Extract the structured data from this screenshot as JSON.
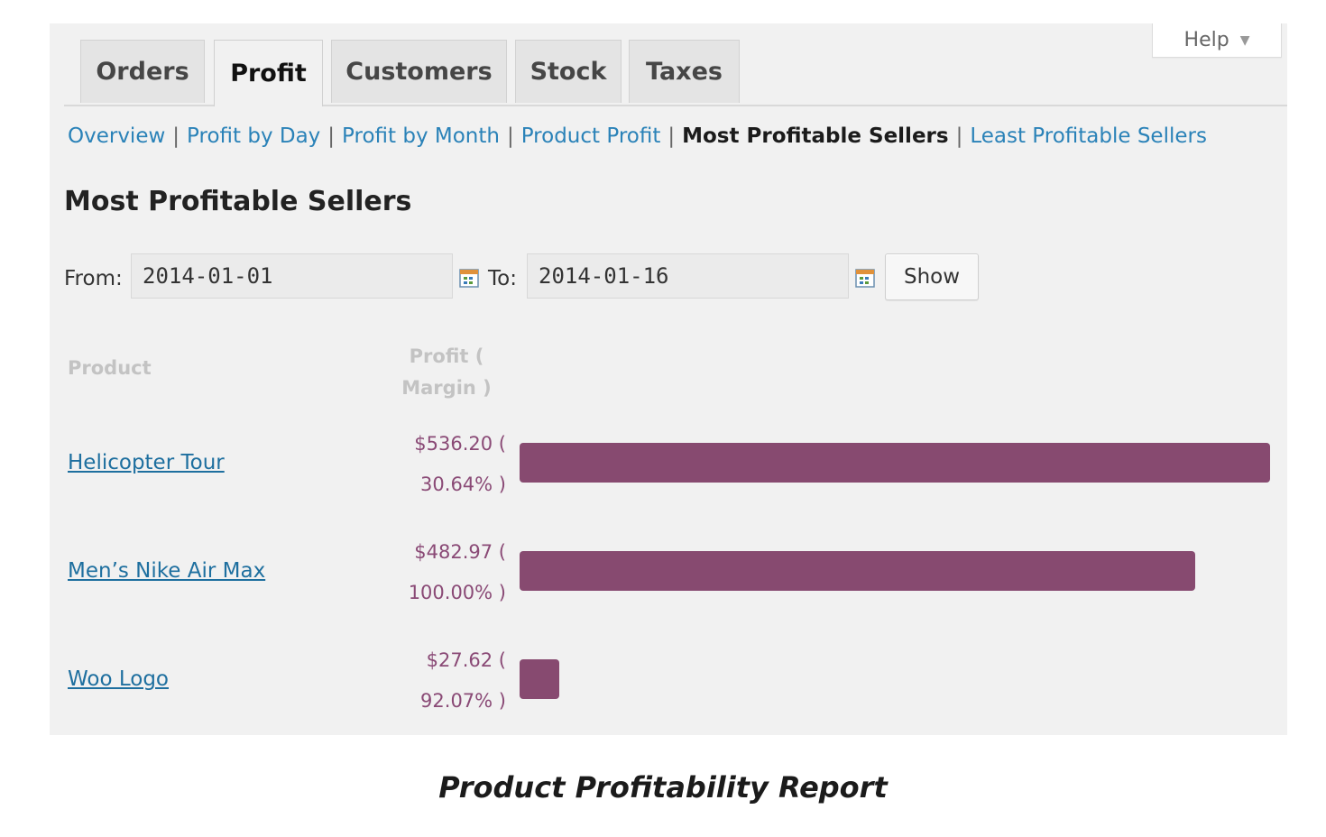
{
  "help": {
    "label": "Help"
  },
  "tabs": [
    {
      "label": "Orders"
    },
    {
      "label": "Profit"
    },
    {
      "label": "Customers"
    },
    {
      "label": "Stock"
    },
    {
      "label": "Taxes"
    }
  ],
  "subnav": {
    "overview": "Overview",
    "profit_by_day": "Profit by Day",
    "profit_by_month": "Profit by Month",
    "product_profit": "Product Profit",
    "most_profitable": "Most Profitable Sellers",
    "least_profitable": "Least Profitable Sellers",
    "separator": "|"
  },
  "page_title": "Most Profitable Sellers",
  "filter": {
    "from_label": "From:",
    "from_value": "2014-01-01",
    "to_label": "To:",
    "to_value": "2014-01-16",
    "show_label": "Show"
  },
  "table": {
    "col_product": "Product",
    "col_profit_line1": "Profit (",
    "col_profit_line2": "Margin )",
    "rows": [
      {
        "product": "Helicopter Tour",
        "profit": "$536.20 (",
        "margin": "30.64% )",
        "value": 536.2
      },
      {
        "product": "Men’s Nike Air Max",
        "profit": "$482.97 (",
        "margin": "100.00% )",
        "value": 482.97
      },
      {
        "product": "Woo Logo",
        "profit": "$27.62 (",
        "margin": "92.07% )",
        "value": 27.62
      }
    ]
  },
  "colors": {
    "bar": "#874a70",
    "link": "#2a82b8",
    "profit_text": "#8a4a76"
  },
  "caption": "Product Profitability Report"
}
